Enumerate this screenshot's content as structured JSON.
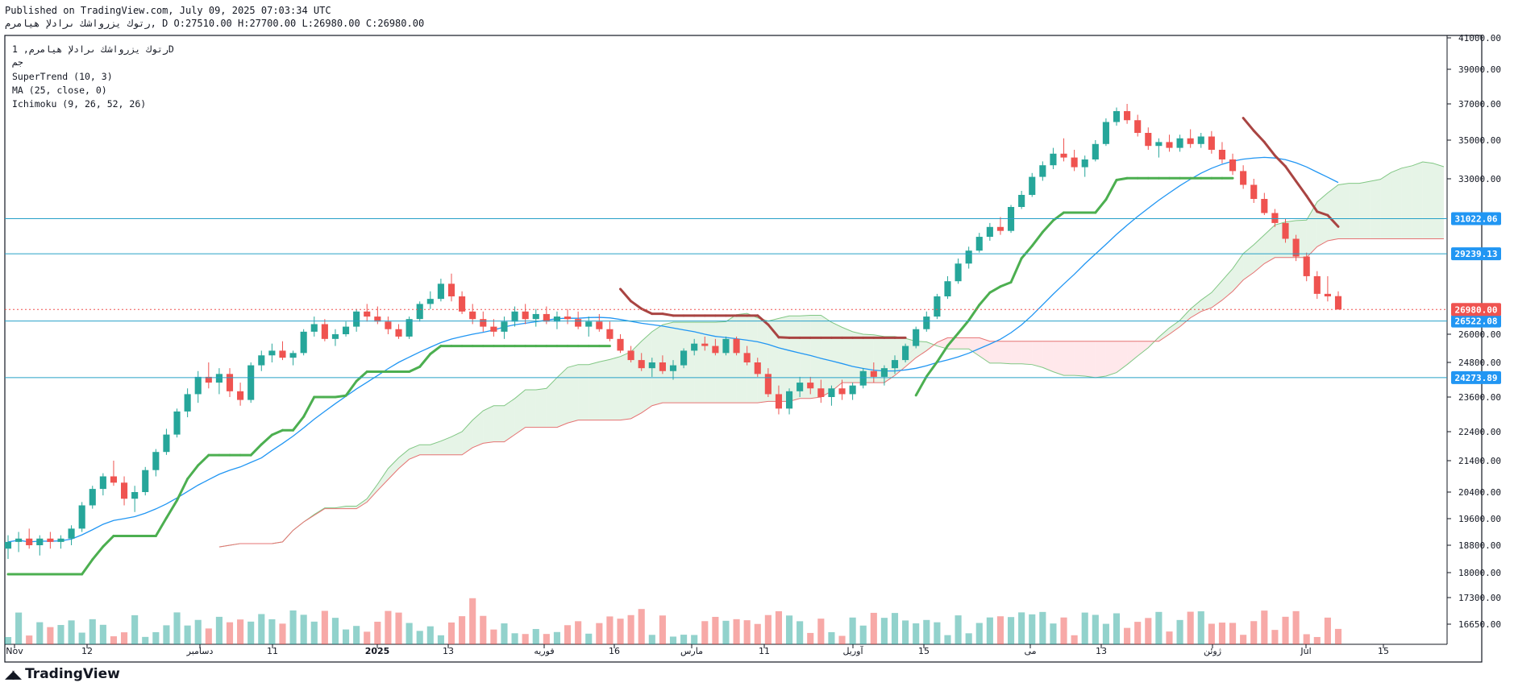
{
  "header": {
    "published": "Published on TradingView.com, July 09, 2025 07:03:34 UTC",
    "symbol_line": "رتوك يزرواشك ىرادلإ هيامرم, D O:27510.00 H:27700.00 L:26980.00 C:26980.00"
  },
  "legend": {
    "line1": "رتوك يزرواشك ىرادلإ هيامرم, 1D",
    "line2": "جم",
    "supertrend": "SuperTrend (10, 3)",
    "ma": "MA (25, close, 0)",
    "ichimoku": "Ichimoku (9, 26, 52, 26)"
  },
  "footer": {
    "brand": "TradingView"
  },
  "colors": {
    "up": "#26a69a",
    "down": "#ef5350",
    "supertrend_up": "#4caf50",
    "supertrend_down": "#a94442",
    "ma": "#2196f3",
    "hline": "#26a0c8",
    "cloud_bull": "#c8e6c9",
    "cloud_bear": "#ffcdd2"
  },
  "chart_data": {
    "type": "candlestick",
    "y_axis_ticks": [
      41000,
      39000,
      37000,
      35000,
      33000,
      31000,
      29000,
      26000,
      24800,
      23600,
      22400,
      21400,
      20400,
      19600,
      18800,
      18000,
      17300,
      16650
    ],
    "y_axis_tick_labels": [
      "41000.00",
      "39000.00",
      "37000.00",
      "35000.00",
      "33000.00",
      "31022.06",
      "29239.13",
      "26000.00",
      "24800.00",
      "23600.00",
      "22400.00",
      "21400.00",
      "20400.00",
      "19600.00",
      "18800.00",
      "18000.00",
      "17300.00",
      "16650.00"
    ],
    "x_axis_labels": [
      "Nov",
      "12",
      "دسامبر",
      "11",
      "2025",
      "13",
      "فوریه",
      "16",
      "مارس",
      "11",
      "آوریل",
      "15",
      "می",
      "13",
      "ژوئن",
      "Jul",
      "15"
    ],
    "horizontal_levels": [
      {
        "value": 31022.06,
        "label": "31022.06"
      },
      {
        "value": 29239.13,
        "label": "29239.13"
      },
      {
        "value": 26522.08,
        "label": "26522.08"
      },
      {
        "value": 24273.89,
        "label": "24273.89"
      }
    ],
    "last_price": {
      "value": 26980.0,
      "label": "26980.00"
    },
    "ohlc": [
      [
        18700,
        19100,
        18400,
        18900
      ],
      [
        18900,
        19200,
        18600,
        19000
      ],
      [
        19000,
        19300,
        18700,
        18800
      ],
      [
        18800,
        19100,
        18500,
        19000
      ],
      [
        19000,
        19200,
        18700,
        18900
      ],
      [
        18900,
        19100,
        18700,
        19000
      ],
      [
        19000,
        19400,
        18800,
        19300
      ],
      [
        19300,
        20100,
        19200,
        20000
      ],
      [
        20000,
        20600,
        19900,
        20500
      ],
      [
        20500,
        21000,
        20300,
        20900
      ],
      [
        20900,
        21400,
        20600,
        20700
      ],
      [
        20700,
        20900,
        20000,
        20200
      ],
      [
        20200,
        20600,
        19800,
        20400
      ],
      [
        20400,
        21200,
        20300,
        21100
      ],
      [
        21100,
        21800,
        20900,
        21700
      ],
      [
        21700,
        22500,
        21600,
        22300
      ],
      [
        22300,
        23200,
        22200,
        23100
      ],
      [
        23100,
        23900,
        22900,
        23700
      ],
      [
        23700,
        24500,
        23400,
        24300
      ],
      [
        24300,
        24800,
        23900,
        24100
      ],
      [
        24100,
        24600,
        23700,
        24400
      ],
      [
        24400,
        24600,
        23600,
        23800
      ],
      [
        23800,
        24100,
        23300,
        23500
      ],
      [
        23500,
        24800,
        23400,
        24700
      ],
      [
        24700,
        25300,
        24500,
        25100
      ],
      [
        25100,
        25600,
        24800,
        25300
      ],
      [
        25300,
        25700,
        24900,
        25000
      ],
      [
        25000,
        25300,
        24700,
        25200
      ],
      [
        25200,
        26200,
        25100,
        26100
      ],
      [
        26100,
        26700,
        25900,
        26400
      ],
      [
        26400,
        26600,
        25700,
        25800
      ],
      [
        25800,
        26200,
        25500,
        26000
      ],
      [
        26000,
        26500,
        25900,
        26300
      ],
      [
        26300,
        27000,
        26100,
        26900
      ],
      [
        26900,
        27200,
        26500,
        26700
      ],
      [
        26700,
        27100,
        26400,
        26500
      ],
      [
        26500,
        26700,
        26000,
        26200
      ],
      [
        26200,
        26400,
        25800,
        25900
      ],
      [
        25900,
        26700,
        25800,
        26600
      ],
      [
        26600,
        27300,
        26500,
        27200
      ],
      [
        27200,
        27700,
        27000,
        27400
      ],
      [
        27400,
        28200,
        27300,
        28000
      ],
      [
        28000,
        28400,
        27300,
        27500
      ],
      [
        27500,
        27700,
        26800,
        26900
      ],
      [
        26900,
        27200,
        26400,
        26600
      ],
      [
        26600,
        26900,
        26100,
        26300
      ],
      [
        26300,
        26600,
        25900,
        26100
      ],
      [
        26100,
        26700,
        25800,
        26500
      ],
      [
        26500,
        27100,
        26300,
        26900
      ],
      [
        26900,
        27200,
        26400,
        26600
      ],
      [
        26600,
        27000,
        26300,
        26800
      ],
      [
        26800,
        27100,
        26400,
        26500
      ],
      [
        26500,
        26900,
        26200,
        26700
      ],
      [
        26700,
        27000,
        26400,
        26600
      ],
      [
        26600,
        26900,
        26200,
        26300
      ],
      [
        26300,
        26700,
        25900,
        26500
      ],
      [
        26500,
        26800,
        26100,
        26200
      ],
      [
        26200,
        26500,
        25700,
        25800
      ],
      [
        25800,
        26000,
        25200,
        25300
      ],
      [
        25300,
        25500,
        24800,
        24900
      ],
      [
        24900,
        25200,
        24500,
        24600
      ],
      [
        24600,
        25000,
        24300,
        24800
      ],
      [
        24800,
        25100,
        24400,
        24500
      ],
      [
        24500,
        24900,
        24200,
        24700
      ],
      [
        24700,
        25400,
        24600,
        25300
      ],
      [
        25300,
        25800,
        25100,
        25600
      ],
      [
        25600,
        25900,
        25300,
        25500
      ],
      [
        25500,
        25800,
        25100,
        25200
      ],
      [
        25200,
        25900,
        25100,
        25800
      ],
      [
        25800,
        25900,
        25100,
        25200
      ],
      [
        25200,
        25500,
        24700,
        24800
      ],
      [
        24800,
        25000,
        24300,
        24400
      ],
      [
        24400,
        24600,
        23600,
        23700
      ],
      [
        23700,
        24000,
        23000,
        23200
      ],
      [
        23200,
        23900,
        23000,
        23800
      ],
      [
        23800,
        24300,
        23600,
        24100
      ],
      [
        24100,
        24300,
        23700,
        23900
      ],
      [
        23900,
        24200,
        23400,
        23600
      ],
      [
        23600,
        24000,
        23300,
        23900
      ],
      [
        23900,
        24200,
        23500,
        23700
      ],
      [
        23700,
        24100,
        23500,
        24000
      ],
      [
        24000,
        24600,
        23900,
        24500
      ],
      [
        24500,
        24800,
        24100,
        24300
      ],
      [
        24300,
        24700,
        24000,
        24600
      ],
      [
        24600,
        25100,
        24400,
        24900
      ],
      [
        24900,
        25600,
        24800,
        25500
      ],
      [
        25500,
        26300,
        25400,
        26200
      ],
      [
        26200,
        26900,
        26100,
        26700
      ],
      [
        26700,
        27600,
        26600,
        27500
      ],
      [
        27500,
        28300,
        27400,
        28100
      ],
      [
        28100,
        29000,
        28000,
        28800
      ],
      [
        28800,
        29600,
        28600,
        29400
      ],
      [
        29400,
        30300,
        29300,
        30100
      ],
      [
        30100,
        30800,
        29900,
        30600
      ],
      [
        30600,
        31100,
        30200,
        30400
      ],
      [
        30400,
        31700,
        30300,
        31600
      ],
      [
        31600,
        32400,
        31500,
        32200
      ],
      [
        32200,
        33300,
        32100,
        33100
      ],
      [
        33100,
        33900,
        32900,
        33700
      ],
      [
        33700,
        34600,
        33500,
        34300
      ],
      [
        34300,
        35100,
        33900,
        34100
      ],
      [
        34100,
        34500,
        33400,
        33600
      ],
      [
        33600,
        34200,
        33100,
        34000
      ],
      [
        34000,
        35000,
        33900,
        34800
      ],
      [
        34800,
        36200,
        34700,
        36000
      ],
      [
        36000,
        36800,
        35800,
        36600
      ],
      [
        36600,
        37000,
        35900,
        36100
      ],
      [
        36100,
        36400,
        35200,
        35400
      ],
      [
        35400,
        35700,
        34500,
        34700
      ],
      [
        34700,
        35100,
        34100,
        34900
      ],
      [
        34900,
        35300,
        34400,
        34600
      ],
      [
        34600,
        35300,
        34400,
        35100
      ],
      [
        35100,
        35600,
        34600,
        34800
      ],
      [
        34800,
        35400,
        34600,
        35200
      ],
      [
        35200,
        35500,
        34300,
        34500
      ],
      [
        34500,
        34900,
        33800,
        34000
      ],
      [
        34000,
        34300,
        33200,
        33400
      ],
      [
        33400,
        33700,
        32500,
        32700
      ],
      [
        32700,
        33000,
        31800,
        32000
      ],
      [
        32000,
        32300,
        31200,
        31300
      ],
      [
        31300,
        31500,
        30600,
        30800
      ],
      [
        30800,
        31000,
        29800,
        30000
      ],
      [
        30000,
        30200,
        28900,
        29100
      ],
      [
        29100,
        29300,
        28100,
        28300
      ],
      [
        28300,
        28500,
        27400,
        27600
      ],
      [
        27600,
        28300,
        27300,
        27500
      ],
      [
        27510,
        27700,
        26980,
        26980
      ]
    ]
  }
}
